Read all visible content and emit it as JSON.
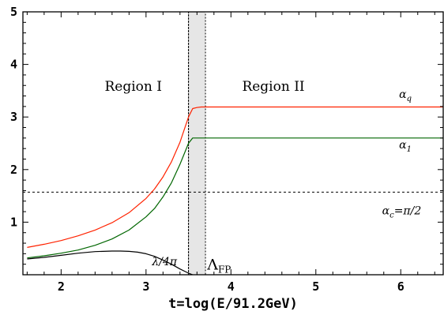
{
  "chart_data": {
    "type": "line",
    "title": "",
    "xlabel": "t=log(E/91.2GeV)",
    "ylabel": "",
    "xlim": [
      1.55,
      6.5
    ],
    "ylim": [
      0,
      5
    ],
    "xticks": [
      2,
      3,
      4,
      5,
      6
    ],
    "yticks": [
      1,
      2,
      3,
      4,
      5
    ],
    "series": [
      {
        "name": "αq",
        "color": "#ff2200",
        "x": [
          1.6,
          1.8,
          2.0,
          2.2,
          2.4,
          2.6,
          2.8,
          3.0,
          3.1,
          3.2,
          3.3,
          3.4,
          3.5,
          3.55,
          3.6,
          3.65,
          3.7,
          4.0,
          5.0,
          6.0,
          6.5
        ],
        "y": [
          0.52,
          0.58,
          0.65,
          0.74,
          0.85,
          0.99,
          1.18,
          1.45,
          1.63,
          1.86,
          2.15,
          2.52,
          3.0,
          3.16,
          3.18,
          3.19,
          3.19,
          3.19,
          3.19,
          3.19,
          3.19
        ]
      },
      {
        "name": "α1",
        "color": "#006600",
        "x": [
          1.6,
          1.8,
          2.0,
          2.2,
          2.4,
          2.6,
          2.8,
          3.0,
          3.1,
          3.2,
          3.3,
          3.4,
          3.5,
          3.55,
          3.6,
          3.65,
          3.7,
          4.0,
          5.0,
          6.0,
          6.5
        ],
        "y": [
          0.32,
          0.36,
          0.41,
          0.47,
          0.56,
          0.68,
          0.85,
          1.1,
          1.26,
          1.48,
          1.75,
          2.1,
          2.5,
          2.6,
          2.6,
          2.6,
          2.6,
          2.6,
          2.6,
          2.6,
          2.6
        ]
      },
      {
        "name": "λ/4π",
        "color": "#000000",
        "x": [
          1.6,
          1.8,
          2.0,
          2.2,
          2.4,
          2.6,
          2.7,
          2.8,
          2.9,
          3.0,
          3.1,
          3.2,
          3.3,
          3.4,
          3.5,
          3.55
        ],
        "y": [
          0.3,
          0.33,
          0.37,
          0.41,
          0.44,
          0.45,
          0.45,
          0.445,
          0.43,
          0.4,
          0.35,
          0.28,
          0.2,
          0.11,
          0.03,
          0.0
        ]
      }
    ],
    "hlines": [
      {
        "y": 1.5708,
        "style": "dashed"
      }
    ],
    "vlines": [
      {
        "x": 3.5,
        "style": "dotted"
      }
    ],
    "band": {
      "x0": 3.5,
      "x1": 3.7,
      "fill": "#e6e6e6"
    },
    "annotations": [
      {
        "text": "Region I",
        "x": 2.85,
        "y": 3.5
      },
      {
        "text": "Region II",
        "x": 4.5,
        "y": 3.5
      },
      {
        "text": "λ/4π",
        "x": 3.07,
        "y": 0.18
      },
      {
        "main": "Λ",
        "sub": "FP",
        "x": 3.72,
        "y": 0.1
      },
      {
        "main": "α",
        "sub": "q",
        "x": 5.98,
        "y": 3.36
      },
      {
        "main": "α",
        "sub": "1",
        "x": 5.98,
        "y": 2.4
      },
      {
        "main": "α",
        "sub": "c",
        "tail": "=π/2",
        "x": 5.78,
        "y": 1.15
      }
    ]
  }
}
